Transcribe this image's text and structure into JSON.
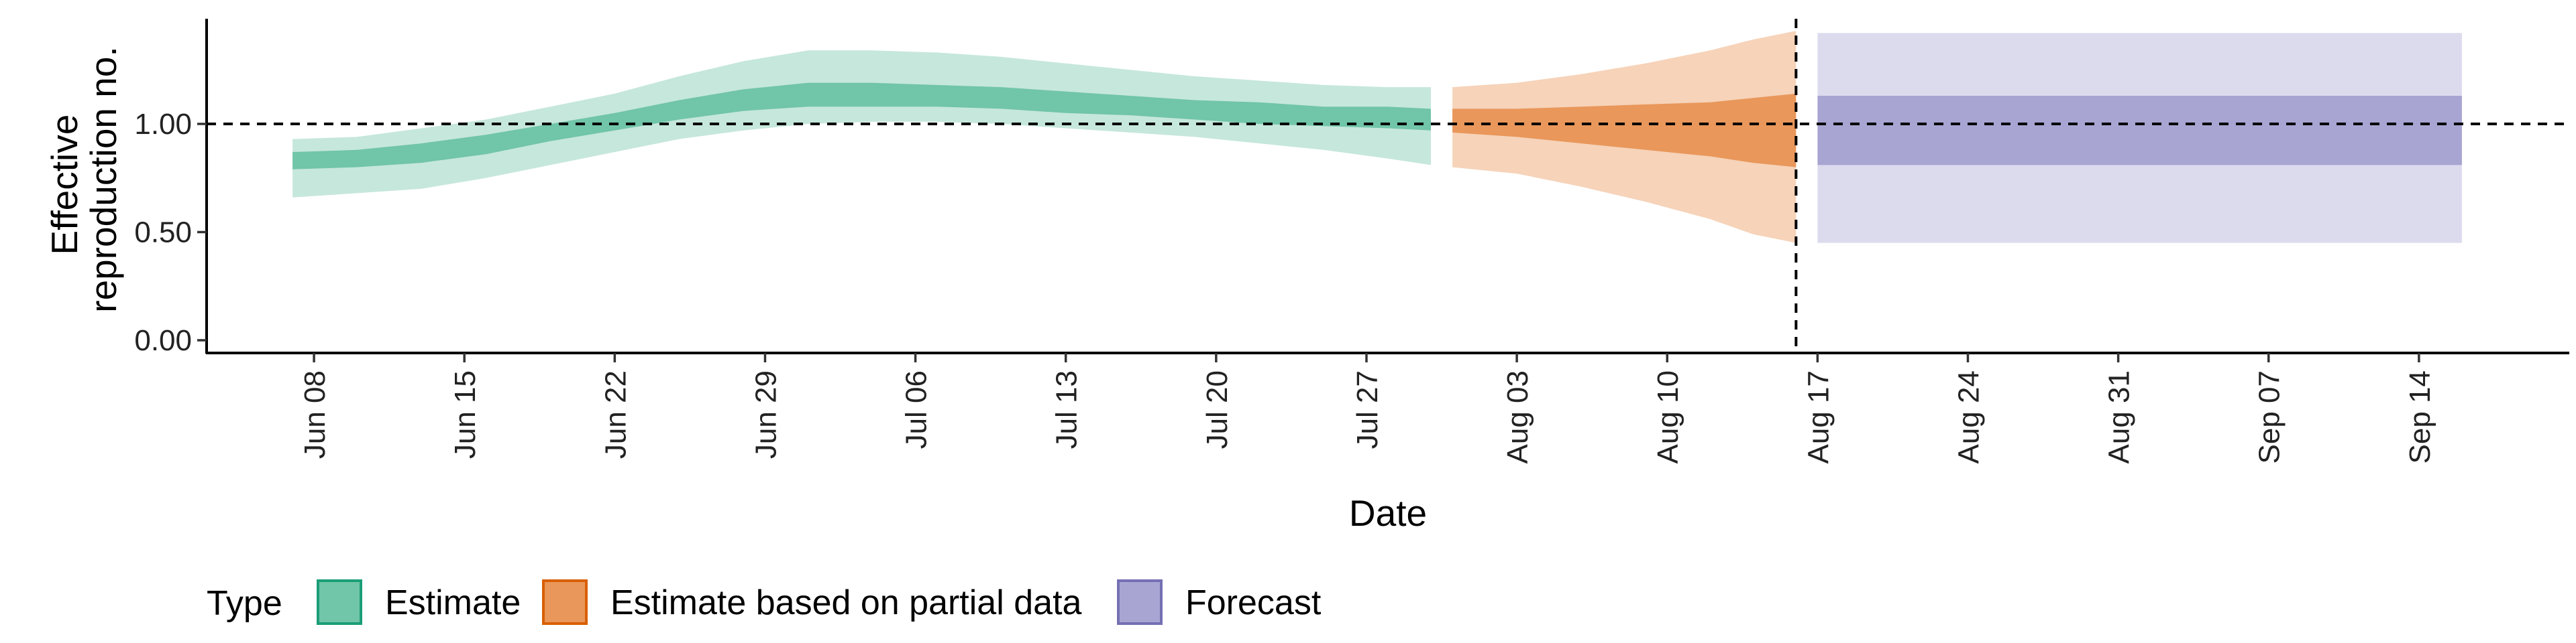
{
  "chart_data": {
    "type": "area",
    "title": "",
    "xlabel": "Date",
    "ylabel_lines": [
      "Effective",
      "reproduction no."
    ],
    "ylim": [
      0,
      1.5
    ],
    "y_ticks": [
      0,
      0.5,
      1,
      1.5
    ],
    "y_tick_labels": [
      "0.00",
      "0.50",
      "1.00",
      ""
    ],
    "x_range": [
      "2020-06-03",
      "2020-09-21"
    ],
    "x_ticks": [
      "2020-06-08",
      "2020-06-15",
      "2020-06-22",
      "2020-06-29",
      "2020-07-06",
      "2020-07-13",
      "2020-07-20",
      "2020-07-27",
      "2020-08-03",
      "2020-08-10",
      "2020-08-17",
      "2020-08-24",
      "2020-08-31",
      "2020-09-07",
      "2020-09-14"
    ],
    "x_tick_labels": [
      "Jun 08",
      "Jun 15",
      "Jun 22",
      "Jun 29",
      "Jul 06",
      "Jul 13",
      "Jul 20",
      "Jul 27",
      "Aug 03",
      "Aug 10",
      "Aug 17",
      "Aug 24",
      "Aug 31",
      "Sep 07",
      "Sep 14"
    ],
    "reference_line_y": 1.0,
    "forecast_date_line": "2020-08-16",
    "grid": false,
    "legend": {
      "title": "Type",
      "position": "bottom-left",
      "entries": [
        {
          "label": "Estimate",
          "fill": "#71c5a8",
          "border": "#1b9e77"
        },
        {
          "label": "Estimate based on partial data",
          "fill": "#e9975b",
          "border": "#d95f02"
        },
        {
          "label": "Forecast",
          "fill": "#a8a5d3",
          "border": "#7570b3"
        }
      ]
    },
    "series": [
      {
        "name": "Estimate",
        "inner_color": "#71c5a8",
        "outer_color": "#c6e7dc",
        "points": [
          {
            "date": "2020-06-07",
            "outer": [
              0.66,
              0.93
            ],
            "inner": [
              0.79,
              0.87
            ]
          },
          {
            "date": "2020-06-10",
            "outer": [
              0.68,
              0.94
            ],
            "inner": [
              0.8,
              0.88
            ]
          },
          {
            "date": "2020-06-13",
            "outer": [
              0.7,
              0.98
            ],
            "inner": [
              0.82,
              0.91
            ]
          },
          {
            "date": "2020-06-16",
            "outer": [
              0.75,
              1.02
            ],
            "inner": [
              0.86,
              0.95
            ]
          },
          {
            "date": "2020-06-19",
            "outer": [
              0.81,
              1.08
            ],
            "inner": [
              0.92,
              1.0
            ]
          },
          {
            "date": "2020-06-22",
            "outer": [
              0.87,
              1.14
            ],
            "inner": [
              0.97,
              1.05
            ]
          },
          {
            "date": "2020-06-25",
            "outer": [
              0.93,
              1.22
            ],
            "inner": [
              1.02,
              1.11
            ]
          },
          {
            "date": "2020-06-28",
            "outer": [
              0.97,
              1.29
            ],
            "inner": [
              1.06,
              1.16
            ]
          },
          {
            "date": "2020-07-01",
            "outer": [
              1.0,
              1.34
            ],
            "inner": [
              1.08,
              1.19
            ]
          },
          {
            "date": "2020-07-04",
            "outer": [
              1.01,
              1.34
            ],
            "inner": [
              1.08,
              1.19
            ]
          },
          {
            "date": "2020-07-07",
            "outer": [
              1.01,
              1.33
            ],
            "inner": [
              1.08,
              1.18
            ]
          },
          {
            "date": "2020-07-10",
            "outer": [
              1.0,
              1.31
            ],
            "inner": [
              1.07,
              1.17
            ]
          },
          {
            "date": "2020-07-13",
            "outer": [
              0.98,
              1.28
            ],
            "inner": [
              1.05,
              1.15
            ]
          },
          {
            "date": "2020-07-16",
            "outer": [
              0.96,
              1.25
            ],
            "inner": [
              1.04,
              1.13
            ]
          },
          {
            "date": "2020-07-19",
            "outer": [
              0.94,
              1.22
            ],
            "inner": [
              1.02,
              1.11
            ]
          },
          {
            "date": "2020-07-22",
            "outer": [
              0.91,
              1.2
            ],
            "inner": [
              1.0,
              1.1
            ]
          },
          {
            "date": "2020-07-25",
            "outer": [
              0.88,
              1.18
            ],
            "inner": [
              0.99,
              1.08
            ]
          },
          {
            "date": "2020-07-28",
            "outer": [
              0.84,
              1.17
            ],
            "inner": [
              0.98,
              1.08
            ]
          },
          {
            "date": "2020-07-30",
            "outer": [
              0.81,
              1.17
            ],
            "inner": [
              0.97,
              1.07
            ]
          }
        ]
      },
      {
        "name": "Estimate based on partial data",
        "inner_color": "#e9975b",
        "outer_color": "#f6d3b9",
        "points": [
          {
            "date": "2020-07-31",
            "outer": [
              0.8,
              1.17
            ],
            "inner": [
              0.96,
              1.07
            ]
          },
          {
            "date": "2020-08-03",
            "outer": [
              0.77,
              1.19
            ],
            "inner": [
              0.94,
              1.07
            ]
          },
          {
            "date": "2020-08-06",
            "outer": [
              0.71,
              1.23
            ],
            "inner": [
              0.91,
              1.08
            ]
          },
          {
            "date": "2020-08-09",
            "outer": [
              0.64,
              1.28
            ],
            "inner": [
              0.88,
              1.09
            ]
          },
          {
            "date": "2020-08-12",
            "outer": [
              0.56,
              1.34
            ],
            "inner": [
              0.85,
              1.1
            ]
          },
          {
            "date": "2020-08-14",
            "outer": [
              0.49,
              1.39
            ],
            "inner": [
              0.82,
              1.12
            ]
          },
          {
            "date": "2020-08-16",
            "outer": [
              0.45,
              1.43
            ],
            "inner": [
              0.8,
              1.14
            ]
          }
        ]
      },
      {
        "name": "Forecast",
        "inner_color": "#a8a5d3",
        "outer_color": "#dcdbee",
        "points": [
          {
            "date": "2020-08-17",
            "outer": [
              0.45,
              1.42
            ],
            "inner": [
              0.81,
              1.13
            ]
          },
          {
            "date": "2020-09-16",
            "outer": [
              0.45,
              1.42
            ],
            "inner": [
              0.81,
              1.13
            ]
          }
        ]
      }
    ]
  }
}
